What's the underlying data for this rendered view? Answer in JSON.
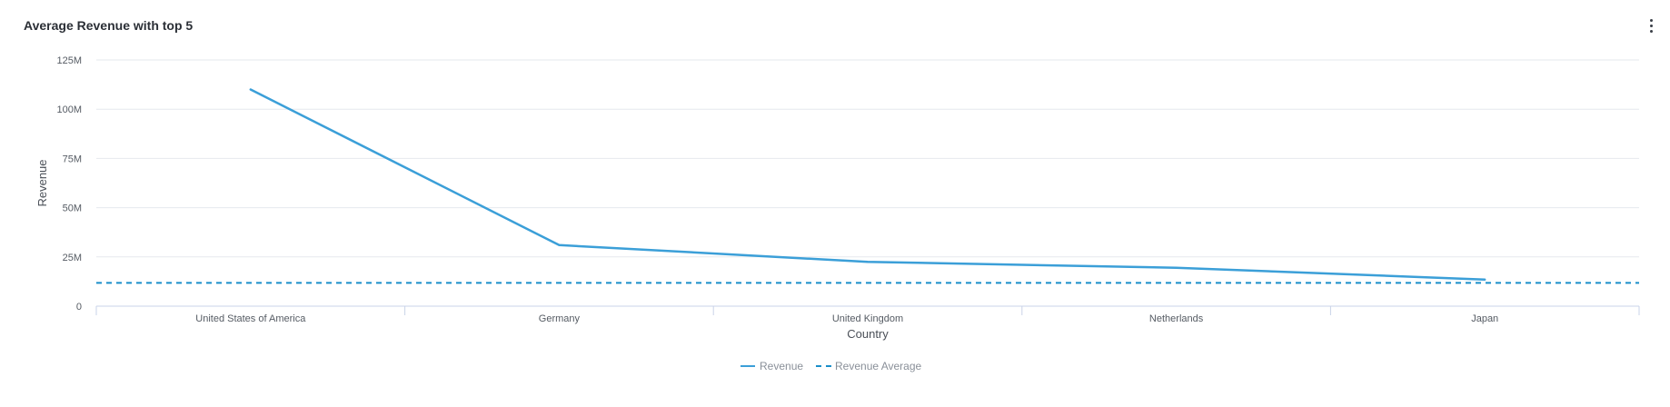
{
  "card": {
    "title": "Average Revenue with top 5",
    "menu_icon": "more-vertical-icon"
  },
  "colors": {
    "revenue": "#3b9fd8",
    "average": "#1a8ec9",
    "grid": "#e6e9ee",
    "axis": "#c9d3e8"
  },
  "chart_data": {
    "type": "line",
    "title": "Average Revenue with top 5",
    "xlabel": "Country",
    "ylabel": "Revenue",
    "categories": [
      "United States of America",
      "Germany",
      "United Kingdom",
      "Netherlands",
      "Japan"
    ],
    "series": [
      {
        "name": "Revenue",
        "values": [
          110000000,
          31000000,
          22500000,
          19500000,
          13500000
        ],
        "style": "solid"
      },
      {
        "name": "Revenue Average",
        "values": [
          11800000,
          11800000,
          11800000,
          11800000,
          11800000
        ],
        "style": "dashed"
      }
    ],
    "ylim": [
      0,
      125000000
    ],
    "yticks": [
      0,
      25000000,
      50000000,
      75000000,
      100000000,
      125000000
    ],
    "ytick_labels": [
      "0",
      "25M",
      "50M",
      "75M",
      "100M",
      "125M"
    ],
    "grid": true,
    "legend_position": "bottom-center"
  }
}
